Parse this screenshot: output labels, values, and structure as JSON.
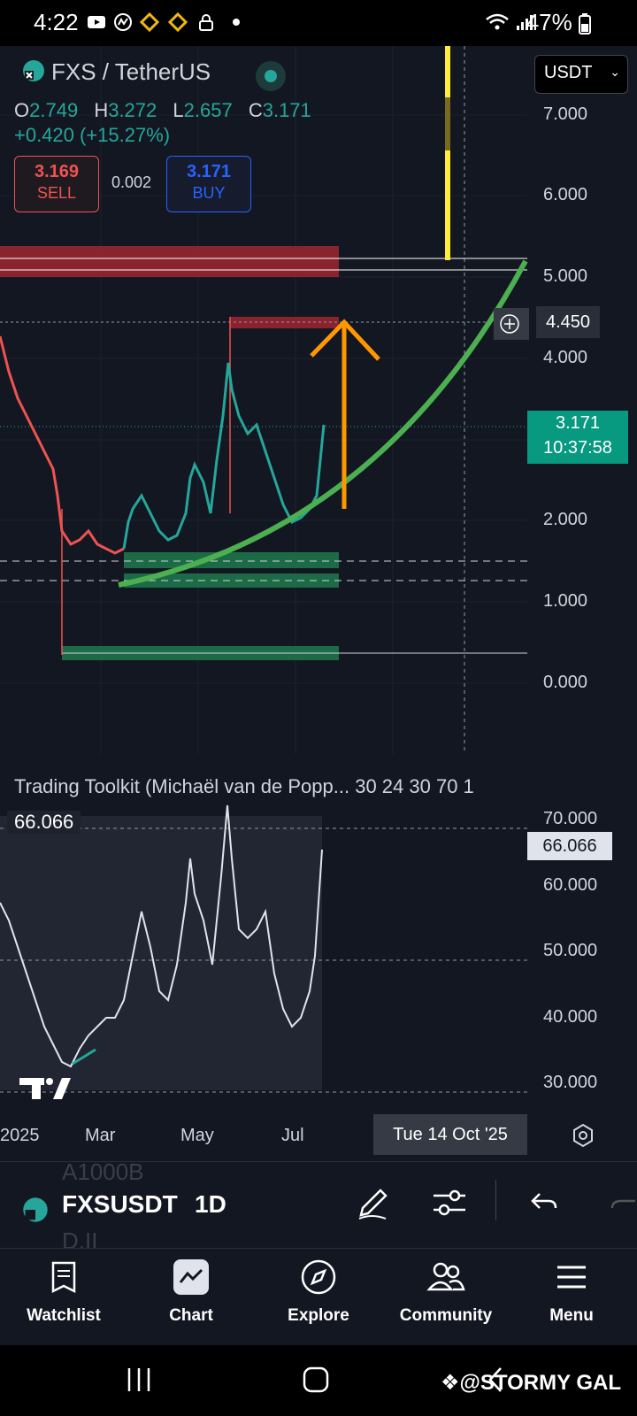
{
  "status_bar": {
    "time": "4:22",
    "battery": "47%"
  },
  "header": {
    "pair": "FXS / TetherUS",
    "ohlc": {
      "o_label": "O",
      "o": "2.749",
      "h_label": "H",
      "h": "3.272",
      "l_label": "L",
      "l": "2.657",
      "c_label": "C",
      "c": "3.171"
    },
    "change": "+0.420 (+15.27%)",
    "sell_price": "3.169",
    "sell_label": "SELL",
    "spread": "0.002",
    "buy_price": "3.171",
    "buy_label": "BUY",
    "currency": "USDT"
  },
  "price_axis": [
    "7.000",
    "6.000",
    "5.000",
    "4.000",
    "2.000",
    "1.000",
    "0.000"
  ],
  "marked_price": "4.450",
  "current_price": {
    "price": "3.171",
    "countdown": "10:37:58"
  },
  "indicator": {
    "title": "Trading Toolkit (Michaël van de Popp... 30 24 30 70 1",
    "value": "66.066",
    "axis": [
      "70.000",
      "60.000",
      "50.000",
      "40.000",
      "30.000"
    ]
  },
  "date_axis": [
    "2025",
    "Mar",
    "May",
    "Jul"
  ],
  "crosshair_date": "Tue 14 Oct '25",
  "toolbar": {
    "symbol": "FXSUSDT",
    "interval": "1D",
    "ghost_top": "A1000B",
    "ghost_bottom": "D.II"
  },
  "bottom_nav": [
    {
      "label": "Watchlist",
      "icon": "watchlist-icon"
    },
    {
      "label": "Chart",
      "icon": "chart-icon"
    },
    {
      "label": "Explore",
      "icon": "compass-icon"
    },
    {
      "label": "Community",
      "icon": "community-icon"
    },
    {
      "label": "Menu",
      "icon": "hamburger-icon"
    }
  ],
  "watermark": "@STORMY GAL",
  "colors": {
    "up": "#26a69a",
    "down": "#ef5350",
    "curve": "#4caf50",
    "arrow": "#ff9800",
    "vline": "#ffeb3b",
    "bg": "#131722"
  }
}
